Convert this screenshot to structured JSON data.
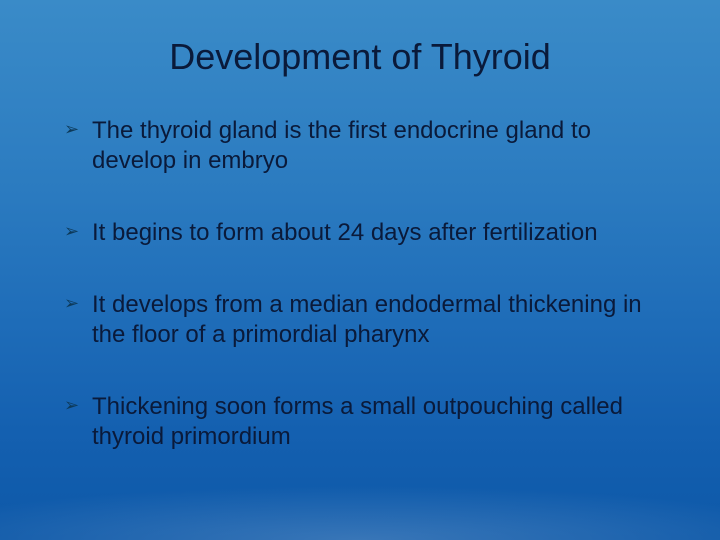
{
  "slide": {
    "title": "Development of Thyroid",
    "title_color": "#0a1a3a",
    "title_fontsize": 36,
    "background_gradient": [
      "#3a8bc8",
      "#2b7bc0",
      "#1e6cb8",
      "#1460b0",
      "#0d58a8"
    ],
    "bullet_marker": "➢",
    "bullet_color": "#0a1a3a",
    "bullet_fontsize": 24,
    "bullets": [
      "The thyroid gland is the first endocrine gland to develop in embryo",
      "It begins to form about 24 days after fertilization",
      "It develops from a median endodermal thickening in the floor of a primordial pharynx",
      "Thickening soon forms a small outpouching called thyroid primordium"
    ]
  }
}
